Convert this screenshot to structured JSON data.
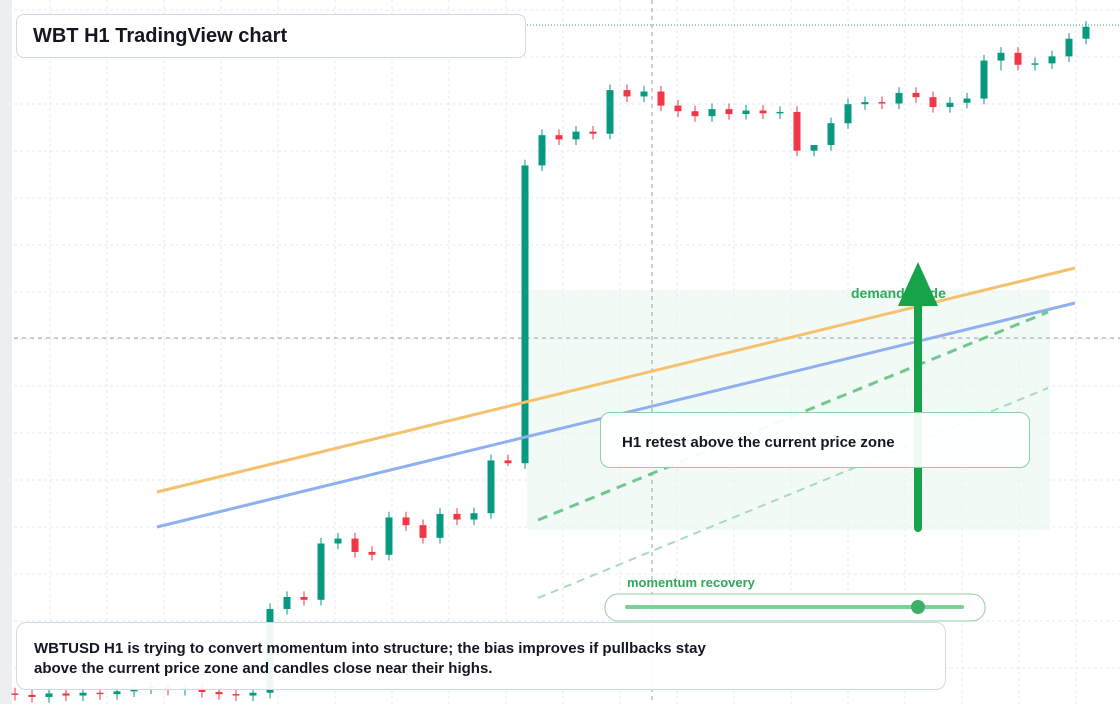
{
  "header": {
    "title": "WBT H1 TradingView chart"
  },
  "chart_data": {
    "type": "candlestick",
    "open": [
      1.5,
      1.3,
      1.0,
      1.5,
      1.2,
      1.6,
      1.4,
      1.8,
      2.2,
      2.4,
      2.0,
      2.3,
      1.7,
      1.4,
      1.2,
      1.6,
      13.5,
      15.2,
      14.8,
      22.8,
      23.5,
      21.6,
      21.2,
      26.5,
      25.4,
      23.6,
      27.0,
      26.2,
      27.1,
      34.6,
      34.2,
      76.5,
      80.8,
      80.2,
      81.3,
      81.0,
      87.2,
      86.3,
      87.0,
      85.0,
      84.2,
      83.5,
      84.5,
      83.8,
      84.3,
      83.9,
      84.1,
      78.6,
      79.4,
      82.5,
      85.2,
      85.5,
      85.3,
      86.8,
      86.2,
      84.8,
      85.4,
      86.0,
      91.4,
      92.5,
      90.8,
      91.0,
      92.0,
      94.5
    ],
    "high": [
      2.3,
      2.1,
      2.3,
      2.3,
      2.4,
      2.4,
      2.6,
      3.0,
      3.2,
      3.2,
      3.1,
      3.1,
      2.5,
      2.2,
      2.4,
      14.3,
      16.0,
      16.0,
      23.6,
      24.3,
      24.3,
      22.4,
      27.3,
      27.3,
      26.2,
      27.8,
      27.8,
      27.9,
      35.4,
      35.4,
      77.3,
      81.6,
      81.6,
      82.1,
      82.1,
      88.0,
      88.0,
      87.8,
      87.8,
      85.8,
      85.0,
      85.3,
      85.3,
      85.1,
      85.1,
      84.9,
      84.9,
      79.4,
      83.3,
      86.0,
      86.3,
      86.3,
      87.6,
      87.6,
      87.0,
      86.2,
      86.8,
      92.2,
      93.3,
      93.3,
      91.8,
      92.8,
      95.3,
      97.0
    ],
    "low": [
      0.5,
      0.2,
      0.2,
      0.4,
      0.4,
      0.6,
      0.6,
      1.0,
      1.4,
      1.2,
      1.2,
      0.9,
      0.6,
      0.4,
      0.4,
      0.8,
      12.7,
      14.0,
      14.0,
      22.0,
      20.8,
      20.4,
      20.4,
      24.6,
      22.8,
      22.8,
      25.4,
      25.4,
      26.3,
      33.8,
      33.4,
      75.7,
      79.4,
      79.4,
      80.2,
      80.2,
      85.5,
      85.5,
      84.2,
      83.4,
      82.7,
      82.7,
      83.0,
      83.0,
      83.1,
      83.1,
      77.8,
      77.8,
      78.6,
      81.7,
      84.4,
      84.5,
      84.5,
      85.4,
      84.0,
      84.0,
      84.6,
      85.2,
      90.0,
      90.0,
      90.0,
      90.2,
      91.2,
      93.7
    ],
    "close": [
      1.3,
      1.0,
      1.5,
      1.2,
      1.6,
      1.4,
      1.8,
      2.2,
      2.4,
      2.0,
      2.3,
      1.7,
      1.4,
      1.2,
      1.6,
      13.5,
      15.2,
      14.8,
      22.8,
      23.5,
      21.6,
      21.2,
      26.5,
      25.4,
      23.6,
      27.0,
      26.2,
      27.1,
      34.6,
      34.2,
      76.5,
      80.8,
      80.2,
      81.3,
      81.0,
      87.2,
      86.3,
      87.0,
      85.0,
      84.2,
      83.5,
      84.5,
      83.8,
      84.3,
      83.9,
      84.1,
      78.6,
      79.4,
      82.5,
      85.2,
      85.5,
      85.3,
      86.8,
      86.2,
      84.8,
      85.4,
      86.0,
      91.4,
      92.5,
      90.8,
      91.0,
      92.0,
      94.5,
      96.2
    ],
    "ylim": [
      0,
      100
    ],
    "up_color": "#089981",
    "down_color": "#f23645"
  },
  "annotations": {
    "callout": "H1 retest above the current price zone",
    "zone_label": "demand guide",
    "slider_label": "momentum recovery"
  },
  "note": [
    "WBTUSD H1 is trying to convert momentum into structure; the bias improves if pullbacks stay",
    "above the current price zone and candles close near their highs."
  ]
}
